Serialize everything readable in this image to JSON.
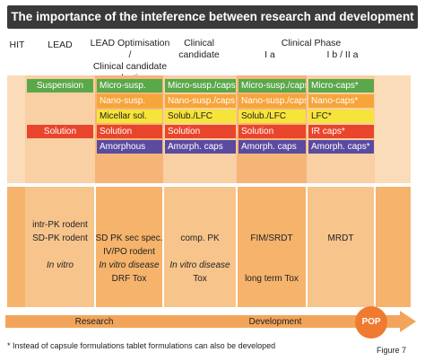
{
  "title": "The importance of the inteference between research and development",
  "headers": {
    "hit": "HIT",
    "lead": "LEAD",
    "lead_opt": [
      "LEAD Optimisation /",
      "Clinical candidate",
      "selection"
    ],
    "clinical_candidate": [
      "Clinical",
      "candidate"
    ],
    "clinical_phase": "Clinical Phase",
    "phase_1a": "I a",
    "phase_1b2a": "I b / II a"
  },
  "rows": {
    "suspension": {
      "label": "Suspension",
      "c1": "Micro-susp.",
      "c2": "Micro-susp./caps",
      "c3": "Micro-susp./caps",
      "c4": "Micro-caps*"
    },
    "nano": {
      "c1": "Nano-susp.",
      "c2": "Nano-susp./caps",
      "c3": "Nano-susp./caps",
      "c4": "Nano-caps*"
    },
    "micellar": {
      "c1": "Micellar sol.",
      "c2": "Solub./LFC",
      "c3": "Solub./LFC",
      "c4": "LFC*"
    },
    "solution": {
      "label": "Solution",
      "c1": "Solution",
      "c2": "Solution",
      "c3": "Solution",
      "c4": "IR caps*"
    },
    "amorphous": {
      "c1": "Amorphous",
      "c2": "Amorph. caps",
      "c3": "Amorph. caps",
      "c4": "Amorph. caps*"
    }
  },
  "studies": {
    "lead": [
      "intr-PK rodent",
      "SD-PK rodent",
      "",
      "In vitro"
    ],
    "lead_opt": [
      "SD PK sec spec.",
      "IV/PO rodent",
      "In vitro disease",
      "DRF Tox"
    ],
    "candidate": [
      "comp. PK",
      "",
      "In vitro disease",
      "Tox"
    ],
    "phase_1a": [
      "FIM/SRDT",
      "",
      "",
      "long term Tox"
    ],
    "phase_1b2a": [
      "MRDT"
    ]
  },
  "arrow": {
    "research": "Research",
    "development": "Development",
    "pop": "POP"
  },
  "footnote": "* Instead of capsule formulations tablet formulations can also be developed",
  "figure_label": "Figure 7",
  "colors": {
    "title_bg": "#3a3a3a",
    "suspension": "#5aa84a",
    "nano": "#f7a43a",
    "micellar": "#f6e43a",
    "solution": "#e8452c",
    "amorphous": "#5a4aa0",
    "arrow": "#f2a55a",
    "pop": "#f07a30"
  }
}
